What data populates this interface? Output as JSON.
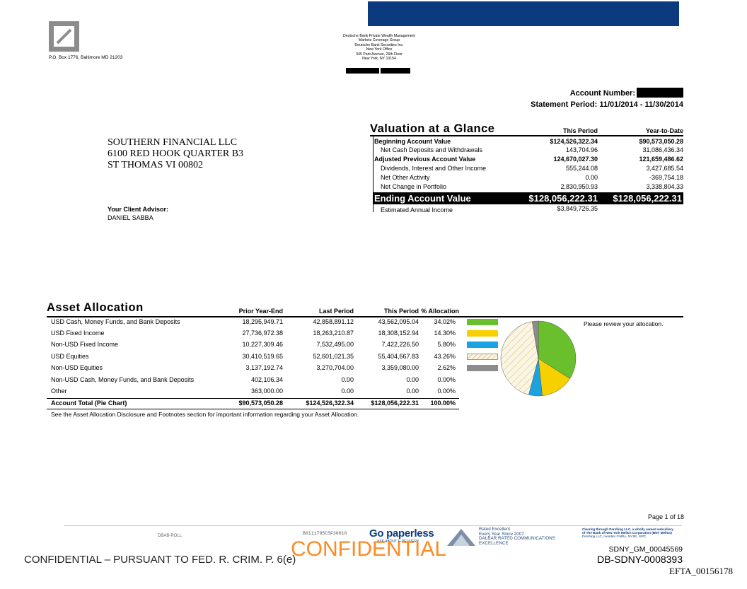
{
  "header": {
    "po_box": "P.O. Box 1776, Baltimore MD 21203",
    "bank_lines": [
      "Deutsche Bank Private Wealth Management",
      "Markets Coverage Group",
      "Deutsche Bank Securities Inc.",
      "New York Office",
      "345 Park Avenue, 26th Floor",
      "New York, NY 10154"
    ],
    "account_number_label": "Account Number:",
    "statement_period": "Statement Period: 11/01/2014 - 11/30/2014",
    "brand_color": "#0b3a7e"
  },
  "client": {
    "name": "SOUTHERN FINANCIAL LLC",
    "address1": "6100 RED HOOK QUARTER B3",
    "address2": "ST THOMAS VI 00802",
    "advisor_label": "Your Client Advisor:",
    "advisor_name": "DANIEL SABBA"
  },
  "valuation": {
    "title": "Valuation at a Glance",
    "col_this": "This Period",
    "col_ytd": "Year-to-Date",
    "rows": [
      {
        "label": "Beginning Account Value",
        "this": "$124,526,322.34",
        "ytd": "$90,573,050.28",
        "bold": true
      },
      {
        "label": "Net Cash Deposits and Withdrawals",
        "this": "143,704.96",
        "ytd": "31,086,436.34",
        "bold": false
      },
      {
        "label": "Adjusted Previous Account Value",
        "this": "124,670,027.30",
        "ytd": "121,659,486.62",
        "bold": true
      },
      {
        "label": "Dividends, Interest and Other Income",
        "this": "555,244.08",
        "ytd": "3,427,685.54",
        "bold": false
      },
      {
        "label": "Net Other Activity",
        "this": "0.00",
        "ytd": "-369,754.18",
        "bold": false
      },
      {
        "label": "Net Change in Portfolio",
        "this": "2,830,950.93",
        "ytd": "3,338,804.33",
        "bold": false
      }
    ],
    "ending_label": "Ending Account Value",
    "ending_this": "$128,056,222.31",
    "ending_ytd": "$128,056,222.31",
    "estimated_label": "Estimated Annual Income",
    "estimated_value": "$3,849,726.35"
  },
  "allocation": {
    "title": "Asset Allocation",
    "headers": {
      "prior": "Prior Year-End",
      "last": "Last Period",
      "this": "This Period",
      "pct": "% Allocation"
    },
    "rows": [
      {
        "label": "USD Cash, Money Funds, and Bank Deposits",
        "prior": "18,295,949.71",
        "last": "42,858,891.12",
        "this": "43,562,095.04",
        "pct": "34.02%",
        "color": "#6abf2c",
        "pattern": false
      },
      {
        "label": "USD Fixed Income",
        "prior": "27,736,972.38",
        "last": "18,263,210.87",
        "this": "18,308,152.94",
        "pct": "14.30%",
        "color": "#f7d000",
        "pattern": false
      },
      {
        "label": "Non-USD Fixed Income",
        "prior": "10,227,309.46",
        "last": "7,532,495.00",
        "this": "7,422,226.50",
        "pct": "5.80%",
        "color": "#1aa3e0",
        "pattern": false
      },
      {
        "label": "USD Equities",
        "prior": "30,410,519.65",
        "last": "52,601,021.35",
        "this": "55,404,667.83",
        "pct": "43.26%",
        "color": "#fbf6e4",
        "pattern": true
      },
      {
        "label": "Non-USD Equities",
        "prior": "3,137,192.74",
        "last": "3,270,704.00",
        "this": "3,359,080.00",
        "pct": "2.62%",
        "color": "#8c8c8c",
        "pattern": false
      },
      {
        "label": "Non-USD Cash, Money Funds, and Bank Deposits",
        "prior": "402,106.34",
        "last": "0.00",
        "this": "0.00",
        "pct": "0.00%",
        "color": null,
        "pattern": false
      },
      {
        "label": "Other",
        "prior": "363,000.00",
        "last": "0.00",
        "this": "0.00",
        "pct": "0.00%",
        "color": null,
        "pattern": false
      }
    ],
    "total": {
      "label": "Account Total (Pie Chart)",
      "prior": "$90,573,050.28",
      "last": "$124,526,322.34",
      "this": "$128,056,222.31",
      "pct": "100.00%"
    },
    "note": "See the Asset Allocation Disclosure and Footnotes section for important information regarding your Asset Allocation.",
    "review_text": "Please review your allocation."
  },
  "chart_data": {
    "type": "pie",
    "categories": [
      "USD Cash, Money Funds, and Bank Deposits",
      "USD Fixed Income",
      "Non-USD Fixed Income",
      "USD Equities",
      "Non-USD Equities"
    ],
    "values": [
      34.02,
      14.3,
      5.8,
      43.26,
      2.62
    ],
    "colors": [
      "#6abf2c",
      "#f7d000",
      "#1aa3e0",
      "#fbf6e4",
      "#8c8c8c"
    ],
    "title": ""
  },
  "footer": {
    "page": "Page 1 of 18",
    "dbab": "DBAB-ROLL",
    "doc_code": "B0111795CSF30016",
    "paperless": "Go paperless",
    "ask": "ASK ABOUT E-DELIVERY",
    "rated": [
      "Rated Excellent",
      "Every Year Since 2007",
      "DALBAR RATED COMMUNICATIONS",
      "EXCELLENCE"
    ],
    "clearing": [
      "Clearing through Pershing LLC, a wholly owned subsidiary",
      "of The Bank of New York Mellon Corporation (BNY Mellon)",
      "Pershing LLC, member FINRA, NYSE, SIPC"
    ],
    "confidential_left": "CONFIDENTIAL – PURSUANT TO FED. R. CRIM. P. 6(e)",
    "confidential": "CONFIDENTIAL",
    "sdny1": "SDNY_GM_00045569",
    "sdny2": "DB-SDNY-0008393",
    "efta": "EFTA_00156178"
  }
}
